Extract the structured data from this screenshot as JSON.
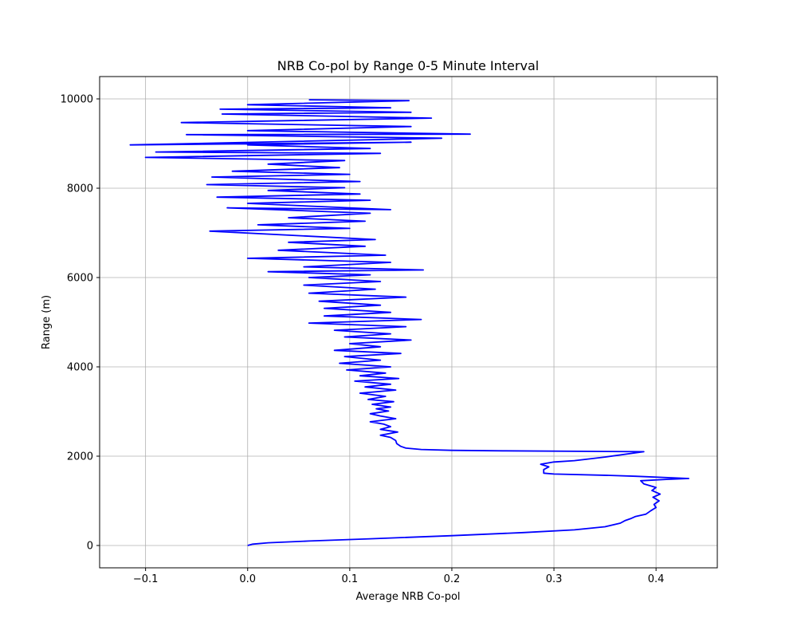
{
  "chart_data": {
    "type": "line",
    "title": "NRB Co-pol by Range 0-5 Minute Interval",
    "xlabel": "Average NRB Co-pol",
    "ylabel": "Range (m)",
    "xlim": [
      -0.145,
      0.46
    ],
    "ylim": [
      -500,
      10500
    ],
    "xticks": [
      -0.1,
      0.0,
      0.1,
      0.2,
      0.3,
      0.4
    ],
    "xtick_labels": [
      "−0.1",
      "0.0",
      "0.1",
      "0.2",
      "0.3",
      "0.4"
    ],
    "yticks": [
      0,
      2000,
      4000,
      6000,
      8000,
      10000
    ],
    "ytick_labels": [
      "0",
      "2000",
      "4000",
      "6000",
      "8000",
      "10000"
    ],
    "grid": true,
    "series": [
      {
        "color": "#0000ff",
        "points": [
          [
            0.0,
            0
          ],
          [
            0.005,
            30
          ],
          [
            0.02,
            60
          ],
          [
            0.06,
            100
          ],
          [
            0.12,
            150
          ],
          [
            0.2,
            220
          ],
          [
            0.27,
            290
          ],
          [
            0.32,
            350
          ],
          [
            0.35,
            420
          ],
          [
            0.365,
            500
          ],
          [
            0.37,
            560
          ],
          [
            0.375,
            600
          ],
          [
            0.38,
            650
          ],
          [
            0.39,
            700
          ],
          [
            0.395,
            780
          ],
          [
            0.4,
            850
          ],
          [
            0.398,
            920
          ],
          [
            0.403,
            1000
          ],
          [
            0.397,
            1080
          ],
          [
            0.404,
            1150
          ],
          [
            0.396,
            1230
          ],
          [
            0.4,
            1300
          ],
          [
            0.388,
            1380
          ],
          [
            0.385,
            1450
          ],
          [
            0.41,
            1480
          ],
          [
            0.432,
            1500
          ],
          [
            0.38,
            1550
          ],
          [
            0.355,
            1570
          ],
          [
            0.3,
            1600
          ],
          [
            0.29,
            1620
          ],
          [
            0.29,
            1700
          ],
          [
            0.295,
            1760
          ],
          [
            0.287,
            1820
          ],
          [
            0.3,
            1870
          ],
          [
            0.32,
            1900
          ],
          [
            0.35,
            1980
          ],
          [
            0.388,
            2100
          ],
          [
            0.25,
            2120
          ],
          [
            0.2,
            2130
          ],
          [
            0.17,
            2150
          ],
          [
            0.155,
            2180
          ],
          [
            0.15,
            2220
          ],
          [
            0.146,
            2280
          ],
          [
            0.145,
            2350
          ],
          [
            0.14,
            2420
          ],
          [
            0.13,
            2470
          ],
          [
            0.147,
            2540
          ],
          [
            0.13,
            2600
          ],
          [
            0.14,
            2660
          ],
          [
            0.133,
            2720
          ],
          [
            0.12,
            2770
          ],
          [
            0.145,
            2840
          ],
          [
            0.13,
            2900
          ],
          [
            0.12,
            2950
          ],
          [
            0.138,
            3010
          ],
          [
            0.126,
            3060
          ],
          [
            0.14,
            3100
          ],
          [
            0.122,
            3160
          ],
          [
            0.143,
            3220
          ],
          [
            0.118,
            3270
          ],
          [
            0.135,
            3340
          ],
          [
            0.11,
            3410
          ],
          [
            0.145,
            3480
          ],
          [
            0.115,
            3550
          ],
          [
            0.14,
            3610
          ],
          [
            0.105,
            3680
          ],
          [
            0.148,
            3740
          ],
          [
            0.11,
            3800
          ],
          [
            0.135,
            3860
          ],
          [
            0.097,
            3930
          ],
          [
            0.14,
            4000
          ],
          [
            0.09,
            4080
          ],
          [
            0.13,
            4150
          ],
          [
            0.095,
            4230
          ],
          [
            0.15,
            4300
          ],
          [
            0.085,
            4370
          ],
          [
            0.13,
            4450
          ],
          [
            0.1,
            4520
          ],
          [
            0.16,
            4600
          ],
          [
            0.095,
            4670
          ],
          [
            0.14,
            4740
          ],
          [
            0.085,
            4820
          ],
          [
            0.155,
            4900
          ],
          [
            0.06,
            4980
          ],
          [
            0.17,
            5060
          ],
          [
            0.075,
            5140
          ],
          [
            0.14,
            5220
          ],
          [
            0.075,
            5310
          ],
          [
            0.13,
            5380
          ],
          [
            0.07,
            5470
          ],
          [
            0.155,
            5560
          ],
          [
            0.06,
            5650
          ],
          [
            0.125,
            5740
          ],
          [
            0.055,
            5830
          ],
          [
            0.13,
            5910
          ],
          [
            0.06,
            6000
          ],
          [
            0.12,
            6060
          ],
          [
            0.02,
            6130
          ],
          [
            0.172,
            6170
          ],
          [
            0.055,
            6240
          ],
          [
            0.14,
            6340
          ],
          [
            0.0,
            6430
          ],
          [
            0.135,
            6500
          ],
          [
            0.03,
            6610
          ],
          [
            0.115,
            6700
          ],
          [
            0.04,
            6790
          ],
          [
            0.125,
            6850
          ],
          [
            -0.037,
            7040
          ],
          [
            0.1,
            7100
          ],
          [
            0.01,
            7180
          ],
          [
            0.115,
            7260
          ],
          [
            0.04,
            7340
          ],
          [
            0.12,
            7440
          ],
          [
            -0.02,
            7560
          ],
          [
            0.14,
            7520
          ],
          [
            0.0,
            7660
          ],
          [
            0.12,
            7730
          ],
          [
            -0.03,
            7800
          ],
          [
            0.11,
            7870
          ],
          [
            0.02,
            7950
          ],
          [
            0.095,
            8010
          ],
          [
            -0.04,
            8080
          ],
          [
            0.11,
            8150
          ],
          [
            -0.035,
            8250
          ],
          [
            0.1,
            8310
          ],
          [
            -0.015,
            8380
          ],
          [
            0.09,
            8460
          ],
          [
            0.02,
            8540
          ],
          [
            0.095,
            8620
          ],
          [
            -0.1,
            8690
          ],
          [
            0.13,
            8780
          ],
          [
            -0.09,
            8810
          ],
          [
            0.12,
            8890
          ],
          [
            0.0,
            8970
          ],
          [
            0.16,
            9030
          ],
          [
            -0.115,
            8970
          ],
          [
            0.19,
            9120
          ],
          [
            -0.06,
            9200
          ],
          [
            0.218,
            9210
          ],
          [
            0.0,
            9290
          ],
          [
            0.16,
            9380
          ],
          [
            -0.065,
            9470
          ],
          [
            0.18,
            9570
          ],
          [
            -0.025,
            9660
          ],
          [
            0.16,
            9700
          ],
          [
            -0.027,
            9770
          ],
          [
            0.14,
            9800
          ],
          [
            0.0,
            9870
          ],
          [
            0.158,
            9960
          ],
          [
            0.06,
            9980
          ]
        ]
      }
    ]
  }
}
